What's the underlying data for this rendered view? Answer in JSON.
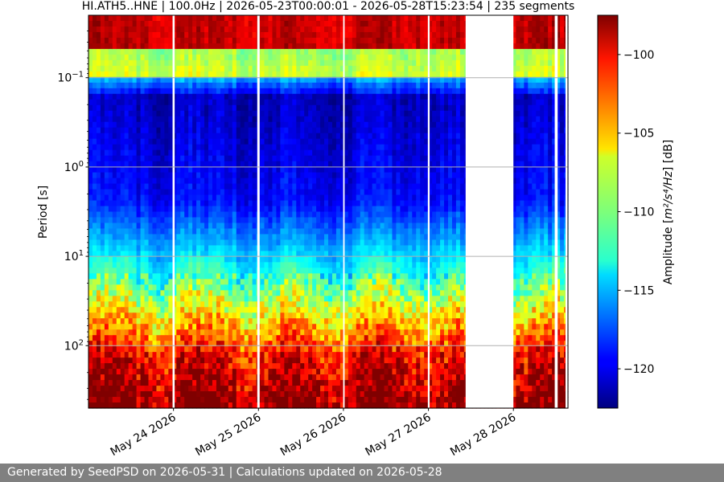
{
  "chart_data": {
    "type": "heatmap",
    "title": "HI.ATH5..HNE | 100.0Hz | 2026-05-23T00:00:01 - 2026-05-28T15:23:54 | 235 segments",
    "ylabel": "Period [s]",
    "y_scale": "log",
    "y_inverted": true,
    "ylim": [
      0.02,
      500
    ],
    "y_ticks": [
      {
        "value": 0.1,
        "base": "10",
        "exp": "−1"
      },
      {
        "value": 1,
        "base": "10",
        "exp": "0"
      },
      {
        "value": 10,
        "base": "10",
        "exp": "1"
      },
      {
        "value": 100,
        "base": "10",
        "exp": "2"
      }
    ],
    "grid": "horizontal",
    "x_type": "date",
    "xlim": [
      "2026-05-23T00:00:01",
      "2026-05-28T15:23:54"
    ],
    "x_ticks": [
      {
        "date": "2026-05-24",
        "label": "May 24 2026"
      },
      {
        "date": "2026-05-25",
        "label": "May 25 2026"
      },
      {
        "date": "2026-05-26",
        "label": "May 26 2026"
      },
      {
        "date": "2026-05-27",
        "label": "May 27 2026"
      },
      {
        "date": "2026-05-28",
        "label": "May 28 2026"
      }
    ],
    "gaps": [
      [
        "2026-05-23T23:45:00",
        "2026-05-24T00:20:00"
      ],
      [
        "2026-05-24T23:40:00",
        "2026-05-25T00:20:00"
      ],
      [
        "2026-05-25T23:55:00",
        "2026-05-26T00:20:00"
      ],
      [
        "2026-05-26T23:50:00",
        "2026-05-27T00:20:00"
      ],
      [
        "2026-05-27T10:30:00",
        "2026-05-28T00:00:00"
      ],
      [
        "2026-05-28T11:40:00",
        "2026-05-28T12:30:00"
      ]
    ],
    "segments": 235,
    "colorbar": {
      "label_main": "Amplitude [",
      "label_math": "m²/s⁴/Hz",
      "label_end": "] [dB]",
      "range": [
        -122.5,
        -97.5
      ],
      "ticks": [
        "-100",
        "-105",
        "-110",
        "-115",
        "-120"
      ],
      "colormap": "jet"
    }
  },
  "footer": "Generated by SeedPSD on 2026-05-31 | Calculations updated on 2026-05-28"
}
